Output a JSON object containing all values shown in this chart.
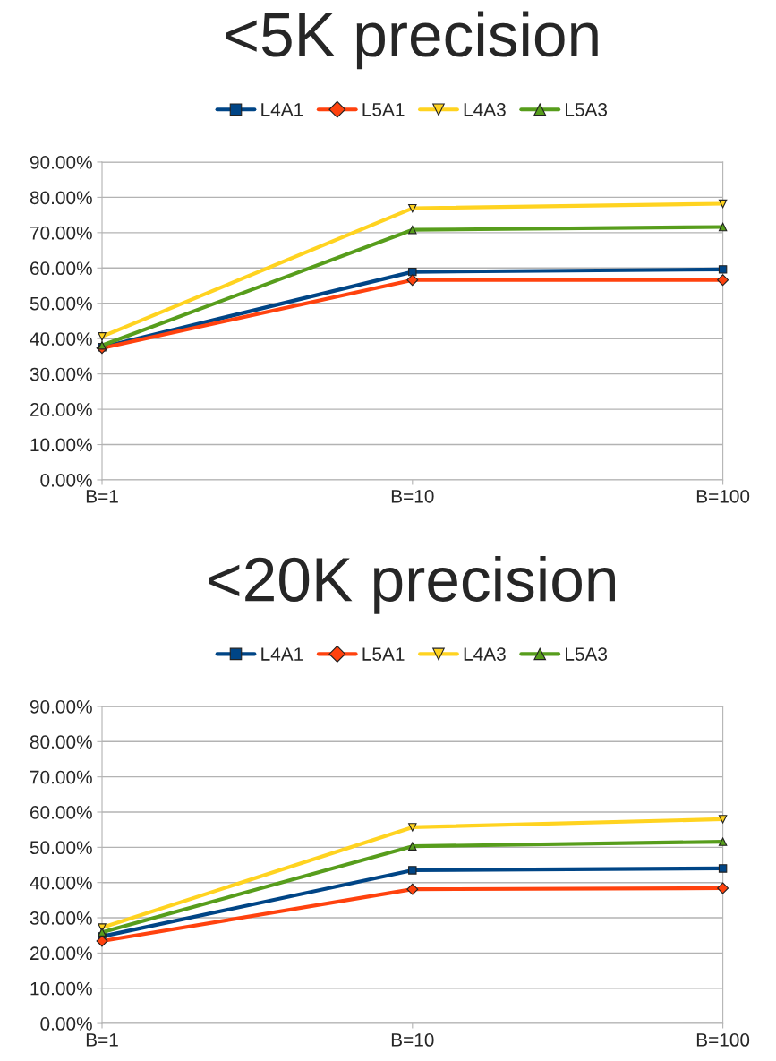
{
  "chart_data": [
    {
      "type": "line",
      "title": "<5K precision",
      "categories": [
        "B=1",
        "B=10",
        "B=100"
      ],
      "series": [
        {
          "name": "L4A1",
          "color": "#004586",
          "marker": "square",
          "values": [
            37.6,
            58.9,
            59.6
          ]
        },
        {
          "name": "L5A1",
          "color": "#ff420e",
          "marker": "diamond",
          "values": [
            37.3,
            56.6,
            56.6
          ]
        },
        {
          "name": "L4A3",
          "color": "#ffd320",
          "marker": "triangle_down",
          "values": [
            40.6,
            76.9,
            78.2
          ]
        },
        {
          "name": "L5A3",
          "color": "#579d1c",
          "marker": "triangle",
          "values": [
            38.1,
            70.8,
            71.6
          ]
        }
      ],
      "ylim": [
        0,
        90
      ],
      "yticks": [
        {
          "value": 0,
          "label": "0.00%"
        },
        {
          "value": 10,
          "label": "10.00%"
        },
        {
          "value": 20,
          "label": "20.00%"
        },
        {
          "value": 30,
          "label": "30.00%"
        },
        {
          "value": 40,
          "label": "40.00%"
        },
        {
          "value": 50,
          "label": "50.00%"
        },
        {
          "value": 60,
          "label": "60.00%"
        },
        {
          "value": 70,
          "label": "70.00%"
        },
        {
          "value": 80,
          "label": "80.00%"
        },
        {
          "value": 90,
          "label": "90.00%"
        }
      ],
      "grid": "y",
      "legend": "top",
      "line_style": "solid"
    },
    {
      "type": "line",
      "title": "<20K precision",
      "categories": [
        "B=1",
        "B=10",
        "B=100"
      ],
      "series": [
        {
          "name": "L4A1",
          "color": "#004586",
          "marker": "square",
          "values": [
            24.7,
            43.5,
            44.0
          ]
        },
        {
          "name": "L5A1",
          "color": "#ff420e",
          "marker": "diamond",
          "values": [
            23.4,
            38.1,
            38.4
          ]
        },
        {
          "name": "L4A3",
          "color": "#ffd320",
          "marker": "triangle_down",
          "values": [
            27.2,
            55.7,
            58.0
          ]
        },
        {
          "name": "L5A3",
          "color": "#579d1c",
          "marker": "triangle",
          "values": [
            25.9,
            50.3,
            51.6
          ]
        }
      ],
      "ylim": [
        0,
        90
      ],
      "yticks": [
        {
          "value": 0,
          "label": "0.00%"
        },
        {
          "value": 10,
          "label": "10.00%"
        },
        {
          "value": 20,
          "label": "20.00%"
        },
        {
          "value": 30,
          "label": "30.00%"
        },
        {
          "value": 40,
          "label": "40.00%"
        },
        {
          "value": 50,
          "label": "50.00%"
        },
        {
          "value": 60,
          "label": "60.00%"
        },
        {
          "value": 70,
          "label": "70.00%"
        },
        {
          "value": 80,
          "label": "80.00%"
        },
        {
          "value": 90,
          "label": "90.00%"
        }
      ],
      "grid": "y",
      "legend": "top",
      "line_style": "solid"
    }
  ]
}
